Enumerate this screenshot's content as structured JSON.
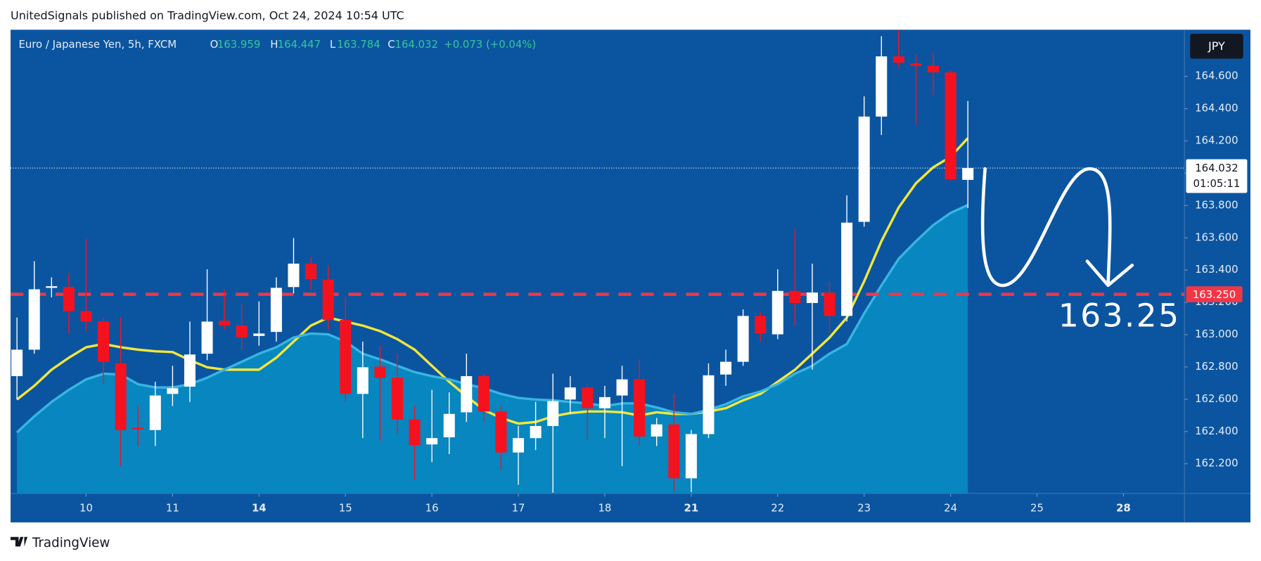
{
  "header": {
    "text": "UnitedSignals published on TradingView.com, Oct 24, 2024 10:54 UTC"
  },
  "chart_data": {
    "type": "candlestick",
    "legend": {
      "symbol": "Euro / Japanese Yen, 5h, FXCM",
      "items": [
        {
          "key": "O",
          "value": 163.959
        },
        {
          "key": "H",
          "value": 164.447
        },
        {
          "key": "L",
          "value": 163.784
        },
        {
          "key": "C",
          "value": 164.032
        }
      ],
      "change": "+0.073 (+0.04%)"
    },
    "currency": "JPY",
    "colors": {
      "up": "#ffffff",
      "down": "#f5121f"
    },
    "open": [
      162.743,
      162.907,
      163.29,
      163.295,
      163.146,
      163.081,
      162.822,
      162.424,
      162.409,
      162.633,
      162.678,
      162.882,
      163.086,
      163.056,
      162.992,
      163.017,
      163.295,
      163.44,
      163.34,
      163.091,
      162.633,
      162.802,
      162.733,
      162.474,
      162.32,
      162.364,
      162.519,
      162.743,
      162.524,
      162.27,
      162.359,
      162.434,
      162.598,
      162.673,
      162.544,
      162.623,
      162.723,
      162.369,
      162.444,
      162.11,
      162.384,
      162.753,
      162.832,
      163.116,
      163.002,
      163.271,
      163.196,
      163.261,
      163.116,
      163.699,
      164.351,
      164.724,
      164.68,
      164.665,
      164.625,
      163.959
    ],
    "high": [
      163.106,
      163.455,
      163.355,
      163.38,
      163.594,
      163.106,
      163.106,
      162.558,
      162.708,
      162.807,
      163.081,
      163.405,
      163.281,
      163.191,
      163.206,
      163.355,
      163.599,
      163.48,
      163.43,
      163.231,
      162.957,
      162.932,
      162.882,
      162.558,
      162.658,
      162.643,
      162.882,
      162.758,
      162.558,
      162.434,
      162.583,
      162.758,
      162.743,
      162.693,
      162.683,
      162.807,
      162.847,
      162.484,
      162.633,
      162.409,
      162.822,
      162.907,
      163.156,
      163.141,
      163.405,
      163.654,
      163.44,
      163.33,
      163.863,
      164.476,
      164.849,
      164.889,
      164.734,
      164.749,
      164.635,
      164.447
    ],
    "low": [
      162.598,
      162.882,
      163.231,
      163.007,
      163.022,
      162.693,
      162.185,
      162.31,
      162.31,
      162.558,
      162.583,
      162.842,
      163.032,
      162.907,
      162.932,
      162.957,
      163.256,
      163.281,
      163.032,
      162.583,
      162.359,
      162.345,
      162.384,
      162.1,
      162.21,
      162.26,
      162.459,
      162.459,
      162.16,
      162.07,
      162.285,
      162.021,
      162.509,
      162.345,
      162.359,
      162.185,
      162.31,
      162.31,
      162.026,
      162.026,
      162.359,
      162.683,
      162.807,
      162.957,
      162.972,
      163.056,
      162.783,
      163.007,
      163.081,
      163.669,
      164.237,
      164.65,
      164.301,
      164.485,
      163.953,
      163.784
    ],
    "close": [
      162.907,
      163.281,
      163.3,
      163.146,
      163.081,
      162.832,
      162.409,
      162.414,
      162.623,
      162.668,
      162.877,
      163.081,
      163.056,
      162.982,
      163.007,
      163.29,
      163.44,
      163.345,
      163.091,
      162.633,
      162.798,
      162.733,
      162.474,
      162.315,
      162.359,
      162.509,
      162.743,
      162.524,
      162.27,
      162.359,
      162.434,
      162.588,
      162.673,
      162.544,
      162.613,
      162.723,
      162.369,
      162.444,
      162.11,
      162.384,
      162.748,
      162.832,
      163.116,
      163.007,
      163.271,
      163.196,
      163.261,
      163.116,
      163.694,
      164.351,
      164.724,
      164.685,
      164.665,
      164.625,
      163.963,
      164.032
    ],
    "lines": [
      {
        "color": "#f3e63a",
        "values": [
          162.598,
          162.683,
          162.783,
          162.857,
          162.922,
          162.942,
          162.922,
          162.907,
          162.897,
          162.892,
          162.842,
          162.798,
          162.783,
          162.783,
          162.783,
          162.857,
          162.957,
          163.056,
          163.106,
          163.081,
          163.056,
          163.022,
          162.972,
          162.907,
          162.807,
          162.708,
          162.618,
          162.534,
          162.484,
          162.449,
          162.459,
          162.494,
          162.514,
          162.524,
          162.524,
          162.519,
          162.499,
          162.519,
          162.509,
          162.509,
          162.524,
          162.544,
          162.593,
          162.633,
          162.708,
          162.783,
          162.882,
          162.982,
          163.106,
          163.33,
          163.579,
          163.788,
          163.938,
          164.037,
          164.102,
          164.217
        ]
      },
      {
        "color": "#39b4e2",
        "fill": "#0786bf",
        "values": [
          162.394,
          162.494,
          162.583,
          162.658,
          162.723,
          162.758,
          162.753,
          162.693,
          162.673,
          162.673,
          162.693,
          162.733,
          162.783,
          162.832,
          162.882,
          162.922,
          162.982,
          163.007,
          163.002,
          162.957,
          162.882,
          162.847,
          162.807,
          162.768,
          162.743,
          162.723,
          162.693,
          162.668,
          162.633,
          162.608,
          162.598,
          162.593,
          162.583,
          162.574,
          162.558,
          162.574,
          162.574,
          162.549,
          162.519,
          162.509,
          162.534,
          162.569,
          162.618,
          162.648,
          162.693,
          162.758,
          162.807,
          162.882,
          162.942,
          163.131,
          163.305,
          163.47,
          163.579,
          163.679,
          163.754,
          163.803
        ]
      }
    ],
    "ylim": [
      162.016,
      164.889
    ],
    "yticks": [
      {
        "value": 162.2,
        "label": "162.200"
      },
      {
        "value": 162.4,
        "label": "162.400"
      },
      {
        "value": 162.6,
        "label": "162.600"
      },
      {
        "value": 162.8,
        "label": "162.800"
      },
      {
        "value": 163.0,
        "label": "163.000"
      },
      {
        "value": 163.2,
        "label": "163.200"
      },
      {
        "value": 163.4,
        "label": "163.400"
      },
      {
        "value": 163.6,
        "label": "163.600"
      },
      {
        "value": 163.8,
        "label": "163.800"
      },
      {
        "value": 164.0,
        "label": "164.000"
      },
      {
        "value": 164.2,
        "label": "164.200"
      },
      {
        "value": 164.4,
        "label": "164.400"
      },
      {
        "value": 164.6,
        "label": "164.600"
      }
    ],
    "xlim": [
      -0.37,
      67.53
    ],
    "xticks": [
      {
        "value": 4,
        "label": "10"
      },
      {
        "value": 9,
        "label": "11"
      },
      {
        "value": 14,
        "label": "14",
        "bold": true
      },
      {
        "value": 19,
        "label": "15"
      },
      {
        "value": 24,
        "label": "16"
      },
      {
        "value": 29,
        "label": "17"
      },
      {
        "value": 34,
        "label": "18"
      },
      {
        "value": 39,
        "label": "21",
        "bold": true
      },
      {
        "value": 44,
        "label": "22"
      },
      {
        "value": 49,
        "label": "23"
      },
      {
        "value": 54,
        "label": "24"
      },
      {
        "value": 59,
        "label": "25"
      },
      {
        "value": 64,
        "label": "28",
        "bold": true
      }
    ],
    "level": {
      "value": 163.25,
      "value_label": "163.250",
      "color": "#f23645"
    },
    "last_price": {
      "value": 164.032,
      "countdown": "01:05:11"
    },
    "annotation": "163.25"
  },
  "footer": {
    "brand": "TradingView"
  }
}
